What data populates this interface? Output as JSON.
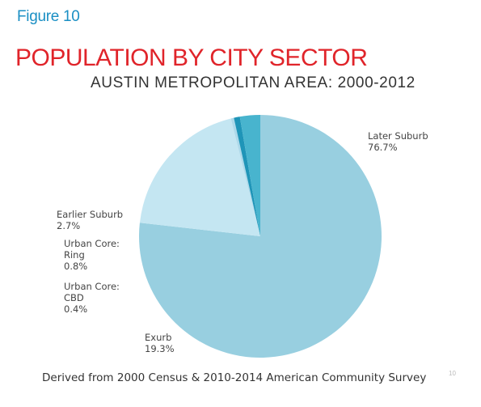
{
  "figure_label": "Figure 10",
  "title": "POPULATION BY CITY SECTOR",
  "subtitle": "AUSTIN METROPOLITAN AREA: 2000-2012",
  "source_note": "Derived from 2000 Census & 2010-2014 American Community Survey",
  "page_number": "10",
  "colors": {
    "figure_label": "#1a8fc4",
    "title": "#e0242a"
  },
  "chart_data": {
    "type": "pie",
    "title": "AUSTIN METROPOLITAN AREA: 2000-2012",
    "legend": "none",
    "slices": [
      {
        "label": [
          "Later Suburb"
        ],
        "value_label": "76.7%",
        "value": 76.7,
        "color": "#98cfe0"
      },
      {
        "label": [
          "Exurb"
        ],
        "value_label": "19.3%",
        "value": 19.3,
        "color": "#c4e6f2"
      },
      {
        "label": [
          "Urban Core:",
          "CBD"
        ],
        "value_label": "0.4%",
        "value": 0.4,
        "color": "#add9ea"
      },
      {
        "label": [
          "Urban Core:",
          "Ring"
        ],
        "value_label": "0.8%",
        "value": 0.8,
        "color": "#1f95b8"
      },
      {
        "label": [
          "Earlier Suburb"
        ],
        "value_label": "2.7%",
        "value": 2.7,
        "color": "#48b4ce"
      }
    ]
  }
}
